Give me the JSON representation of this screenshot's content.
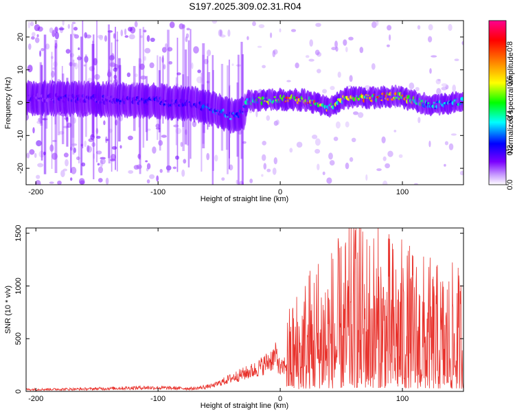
{
  "title": "S197.2025.309.02.31.R04",
  "chart_data": [
    {
      "type": "heatmap",
      "xlabel": "Height of straight line (km)",
      "ylabel": "Frequency (Hz)",
      "xlim": [
        -208,
        150
      ],
      "ylim": [
        -25,
        25
      ],
      "x_ticks": [
        -200,
        -100,
        0,
        100
      ],
      "y_ticks": [
        -20,
        -10,
        0,
        10,
        20
      ],
      "colorbar": {
        "label": "Normalized spectral amplitude",
        "range": [
          0.0,
          0.95
        ],
        "ticks": [
          "0.0",
          "0.2",
          "0.4",
          "0.6",
          "0.8"
        ],
        "colors": [
          "#ffffff",
          "#7b00ff",
          "#0000ff",
          "#00ffff",
          "#00ff00",
          "#ffff00",
          "#ff8000",
          "#ff0000",
          "#ff0090"
        ]
      },
      "ridge": [
        {
          "x": -205,
          "y": 1.5,
          "a": 0.15
        },
        {
          "x": -150,
          "y": 1.0,
          "a": 0.2
        },
        {
          "x": -100,
          "y": 0.5,
          "a": 0.22
        },
        {
          "x": -70,
          "y": -0.5,
          "a": 0.22
        },
        {
          "x": -55,
          "y": -2.0,
          "a": 0.3
        },
        {
          "x": -40,
          "y": -4.0,
          "a": 0.35
        },
        {
          "x": -30,
          "y": -3.0,
          "a": 0.3
        },
        {
          "x": -27,
          "y": 0.5,
          "a": 0.35
        },
        {
          "x": 0,
          "y": 1.0,
          "a": 0.7
        },
        {
          "x": 20,
          "y": 0.8,
          "a": 0.8
        },
        {
          "x": 40,
          "y": -1.5,
          "a": 0.55
        },
        {
          "x": 55,
          "y": 1.5,
          "a": 0.55
        },
        {
          "x": 75,
          "y": 1.5,
          "a": 0.7
        },
        {
          "x": 95,
          "y": 2.0,
          "a": 0.75
        },
        {
          "x": 110,
          "y": 0.5,
          "a": 0.5
        },
        {
          "x": 125,
          "y": -1.0,
          "a": 0.35
        },
        {
          "x": 150,
          "y": 0.5,
          "a": 0.4
        }
      ]
    },
    {
      "type": "line",
      "xlabel": "Height of straight line (km)",
      "ylabel": "SNR (10 * v/v)",
      "xlim": [
        -208,
        150
      ],
      "ylim": [
        0,
        1550
      ],
      "x_ticks": [
        -200,
        -100,
        0,
        100
      ],
      "y_ticks": [
        0,
        500,
        1000,
        1500
      ],
      "color": "#e8322c",
      "envelope": [
        {
          "x": -208,
          "y": 20
        },
        {
          "x": -160,
          "y": 25
        },
        {
          "x": -110,
          "y": 40
        },
        {
          "x": -70,
          "y": 30
        },
        {
          "x": -55,
          "y": 60
        },
        {
          "x": -40,
          "y": 140
        },
        {
          "x": -20,
          "y": 230
        },
        {
          "x": -10,
          "y": 310
        },
        {
          "x": -3,
          "y": 380
        },
        {
          "x": 0,
          "y": 220
        },
        {
          "x": 10,
          "y": 380
        },
        {
          "x": 30,
          "y": 560
        },
        {
          "x": 50,
          "y": 600
        },
        {
          "x": 62,
          "y": 700
        },
        {
          "x": 80,
          "y": 650
        },
        {
          "x": 100,
          "y": 600
        },
        {
          "x": 130,
          "y": 500
        },
        {
          "x": 150,
          "y": 500
        }
      ],
      "peak": {
        "x": 62,
        "y": 1550
      }
    }
  ]
}
